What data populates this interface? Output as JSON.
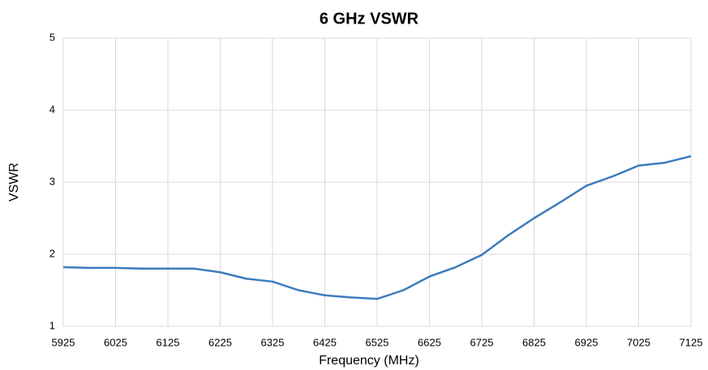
{
  "chart_data": {
    "type": "line",
    "title": "6 GHz VSWR",
    "x_label": "Frequency (MHz)",
    "y_label": "VSWR",
    "x": [
      5925,
      5975,
      6025,
      6075,
      6125,
      6175,
      6225,
      6275,
      6325,
      6375,
      6425,
      6475,
      6525,
      6575,
      6625,
      6675,
      6725,
      6775,
      6825,
      6875,
      6925,
      6975,
      7025,
      7075,
      7125
    ],
    "series": [
      {
        "name": "VSWR",
        "color": "#3d7bbd",
        "values": [
          1.82,
          1.81,
          1.81,
          1.8,
          1.8,
          1.8,
          1.75,
          1.66,
          1.62,
          1.5,
          1.43,
          1.4,
          1.38,
          1.5,
          1.69,
          1.82,
          1.99,
          2.26,
          2.5,
          2.72,
          2.95,
          3.08,
          3.23,
          3.27,
          3.36
        ]
      }
    ],
    "xlim": [
      5925,
      7125
    ],
    "xticks": [
      5925,
      6025,
      6125,
      6225,
      6325,
      6425,
      6525,
      6625,
      6725,
      6825,
      6925,
      7025,
      7125
    ],
    "ylim": [
      1,
      5
    ],
    "yticks": [
      1,
      2,
      3,
      4,
      5
    ],
    "grid": true
  }
}
